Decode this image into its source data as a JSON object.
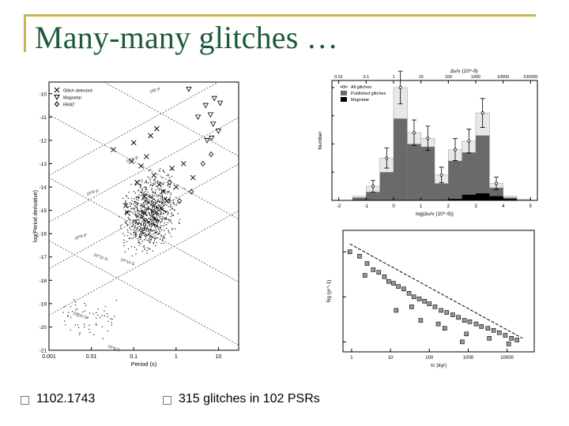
{
  "slide": {
    "title": "Many-many glitches …",
    "bullets": [
      {
        "text": "1102.1743"
      },
      {
        "text": "315 glitches in 102 PSRs"
      }
    ]
  },
  "colors": {
    "title": "#1e5a3a",
    "accent": "#c8b45a"
  },
  "chart_data": [
    {
      "type": "scatter",
      "xlabel": "Period (s)",
      "ylabel": "log(Period derivative)",
      "x_ticks": [
        "0.001",
        "0.01",
        "0.1",
        "1",
        "10"
      ],
      "y_ticks": [
        "-10",
        "-11",
        "-12",
        "-13",
        "-14",
        "-15",
        "-16",
        "-17",
        "-18",
        "-19",
        "-20",
        "-21"
      ],
      "legend": [
        "Glitch detected",
        "Magnetar",
        "RRAT"
      ],
      "legend_position": "top-left",
      "x_log": true,
      "xlim": [
        0.001,
        30
      ],
      "ylim": [
        -21,
        -9.5
      ],
      "line_labels": [
        "100 yr",
        "10^4 yr",
        "10^6 yr",
        "10^8 yr",
        "10^14 G",
        "10^12 G",
        "10^10 G",
        "10^8 G"
      ],
      "series": [
        {
          "name": "Glitch detected",
          "x": [
            0.033,
            0.089,
            0.15,
            0.2,
            0.3,
            0.4,
            0.5,
            0.6,
            0.8,
            1.0,
            0.25,
            0.12,
            0.065,
            0.07,
            0.1,
            0.35,
            1.5,
            2.5,
            0.45,
            0.18
          ],
          "y": [
            -12.4,
            -12.9,
            -13.1,
            -12.7,
            -13.5,
            -13.9,
            -14.2,
            -14.6,
            -13.2,
            -14.0,
            -11.8,
            -13.8,
            -14.8,
            -15.1,
            -12.1,
            -11.5,
            -13.0,
            -13.6,
            -14.9,
            -14.4
          ]
        },
        {
          "name": "Magnetar",
          "x": [
            2.0,
            5.0,
            6.5,
            7.5,
            8.0,
            10.0,
            11.0,
            5.4,
            3.3,
            6.9
          ],
          "y": [
            -9.8,
            -10.5,
            -10.9,
            -11.3,
            -10.2,
            -11.6,
            -10.4,
            -12.0,
            -11.0,
            -11.9
          ]
        },
        {
          "name": "RRAT",
          "x": [
            0.7,
            1.2,
            2.3,
            4.3,
            6.7
          ],
          "y": [
            -13.8,
            -14.6,
            -14.2,
            -13.0,
            -12.6
          ]
        }
      ]
    },
    {
      "type": "bar",
      "title": "Δν/ν (10^-9)",
      "xlabel": "log(Δν/ν (10^-9))",
      "ylabel": "Number",
      "top_ticks": [
        "0.01",
        "0.1",
        "1",
        "10",
        "100",
        "1000",
        "10000",
        "100000"
      ],
      "x_ticks": [
        "-2",
        "-1",
        "0",
        "1",
        "2",
        "3",
        "4",
        "5"
      ],
      "legend": [
        "All glitches",
        "Published glitches",
        "Magnetar"
      ],
      "legend_position": "top-right",
      "x": [
        -1.75,
        -1.25,
        -0.75,
        -0.25,
        0.25,
        0.75,
        1.25,
        1.75,
        2.25,
        2.75,
        3.25,
        3.75,
        4.25,
        4.75
      ],
      "xlim": [
        -2.25,
        5.25
      ],
      "ylim": [
        0,
        85
      ],
      "series": [
        {
          "name": "All glitches",
          "values": [
            0,
            3,
            10,
            30,
            80,
            48,
            44,
            18,
            36,
            42,
            62,
            12,
            3,
            1
          ]
        },
        {
          "name": "Published glitches",
          "values": [
            0,
            2,
            6,
            20,
            58,
            40,
            38,
            12,
            28,
            34,
            46,
            9,
            2,
            0
          ]
        },
        {
          "name": "Magnetar",
          "values": [
            0,
            0,
            0,
            0,
            0,
            0,
            0,
            0,
            1,
            4,
            5,
            3,
            1,
            0
          ]
        }
      ]
    },
    {
      "type": "scatter",
      "xlabel": "τc (kyr)",
      "ylabel": "Ṅg (yr^-1)",
      "x_ticks": [
        "1",
        "10",
        "100",
        "1000",
        "10000"
      ],
      "x_log": true,
      "y_log": true,
      "xlim": [
        0.6,
        50000
      ],
      "ylim": [
        0.006,
        3
      ],
      "series": [
        {
          "name": "",
          "x": [
            0.9,
            1.6,
            2.5,
            3.6,
            5.0,
            7.0,
            9.0,
            12,
            16,
            22,
            30,
            40,
            55,
            75,
            100,
            140,
            200,
            280,
            400,
            560,
            800,
            1100,
            1600,
            2200,
            3200,
            4500,
            6300,
            9000,
            13000,
            18000,
            2.2,
            14,
            60,
            250,
            900,
            3500,
            11000,
            35,
            170,
            700
          ],
          "y": [
            1.0,
            0.8,
            0.55,
            0.4,
            0.35,
            0.28,
            0.22,
            0.2,
            0.17,
            0.15,
            0.12,
            0.1,
            0.09,
            0.08,
            0.07,
            0.06,
            0.05,
            0.045,
            0.04,
            0.035,
            0.03,
            0.028,
            0.025,
            0.022,
            0.02,
            0.018,
            0.016,
            0.014,
            0.012,
            0.011,
            0.3,
            0.05,
            0.03,
            0.02,
            0.015,
            0.012,
            0.009,
            0.06,
            0.025,
            0.01
          ]
        }
      ]
    }
  ]
}
